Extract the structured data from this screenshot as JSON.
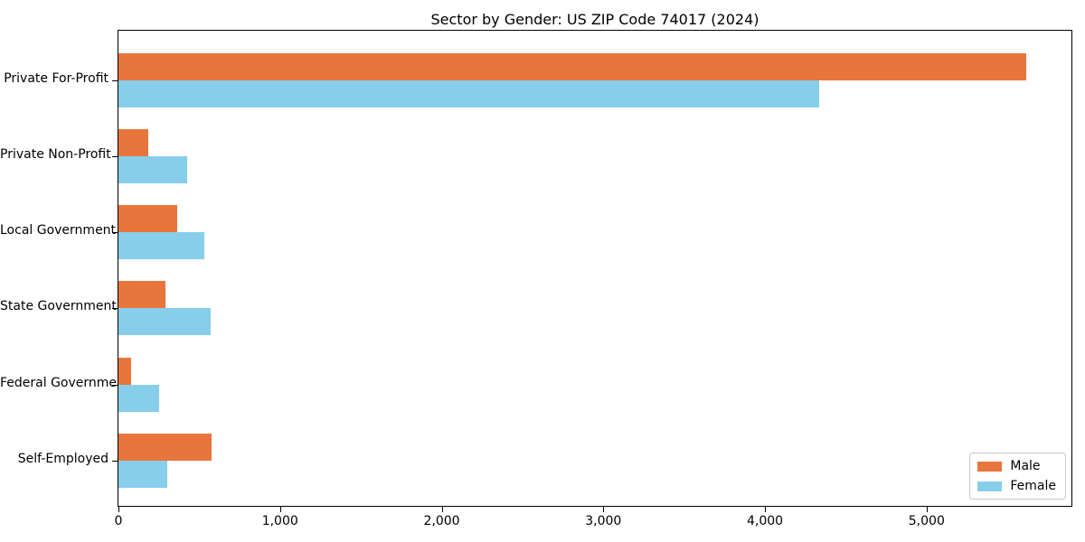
{
  "chart_data": {
    "type": "bar",
    "orientation": "horizontal",
    "title": "Sector by Gender: US ZIP Code 74017 (2024)",
    "categories": [
      "Private For-Profit",
      "Private Non-Profit",
      "Local Government",
      "State Government",
      "Federal Government",
      "Self-Employed"
    ],
    "series": [
      {
        "name": "Male",
        "color": "#e8763c",
        "values": [
          5614,
          183,
          361,
          293,
          76,
          574
        ]
      },
      {
        "name": "Female",
        "color": "#87ceeb",
        "values": [
          4335,
          423,
          529,
          570,
          250,
          302
        ]
      }
    ],
    "xlabel": "",
    "ylabel": "",
    "xlim": [
      0,
      5896
    ],
    "xticks": [
      0,
      1000,
      2000,
      3000,
      4000,
      5000
    ],
    "xtick_labels": [
      "0",
      "1,000",
      "2,000",
      "3,000",
      "4,000",
      "5,000"
    ],
    "grid": false,
    "legend_position": "lower right",
    "background_color": "#ffffff",
    "axis_color": "#000000"
  }
}
